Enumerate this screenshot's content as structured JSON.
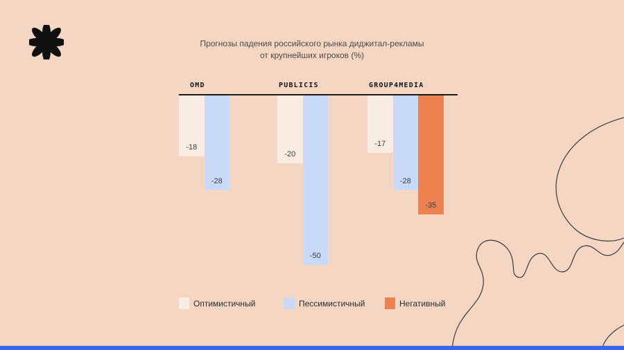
{
  "page": {
    "background_color": "#f4d6c3",
    "bottom_strip_color": "#3a63ef"
  },
  "title": {
    "line1": "Прогнозы падения российского рынка диджитал-рекламы",
    "line2": "от крупнейших игроков (%)"
  },
  "chart_data": {
    "type": "bar",
    "title": "Прогнозы падения российского рынка диджитал-рекламы от крупнейших игроков (%)",
    "categories": [
      "OMD",
      "PUBLICIS",
      "GROUP4MEDIA"
    ],
    "series": [
      {
        "name": "Оптимистичный",
        "color": "#f8ece3",
        "values": [
          -18,
          -20,
          -17
        ]
      },
      {
        "name": "Пессимистичный",
        "color": "#c9d9f8",
        "values": [
          -28,
          -50,
          -28
        ]
      },
      {
        "name": "Негативный",
        "color": "#ed8150",
        "values": [
          null,
          null,
          -35
        ]
      }
    ],
    "ylim": [
      -50,
      0
    ],
    "value_labels_shown": true,
    "grid": false,
    "legend_position": "bottom"
  },
  "legend": {
    "items": [
      {
        "label": "Оптимистичный",
        "color": "#f8ece3"
      },
      {
        "label": "Пессимистичный",
        "color": "#c9d9f8"
      },
      {
        "label": "Негативный",
        "color": "#ed8150"
      }
    ]
  }
}
